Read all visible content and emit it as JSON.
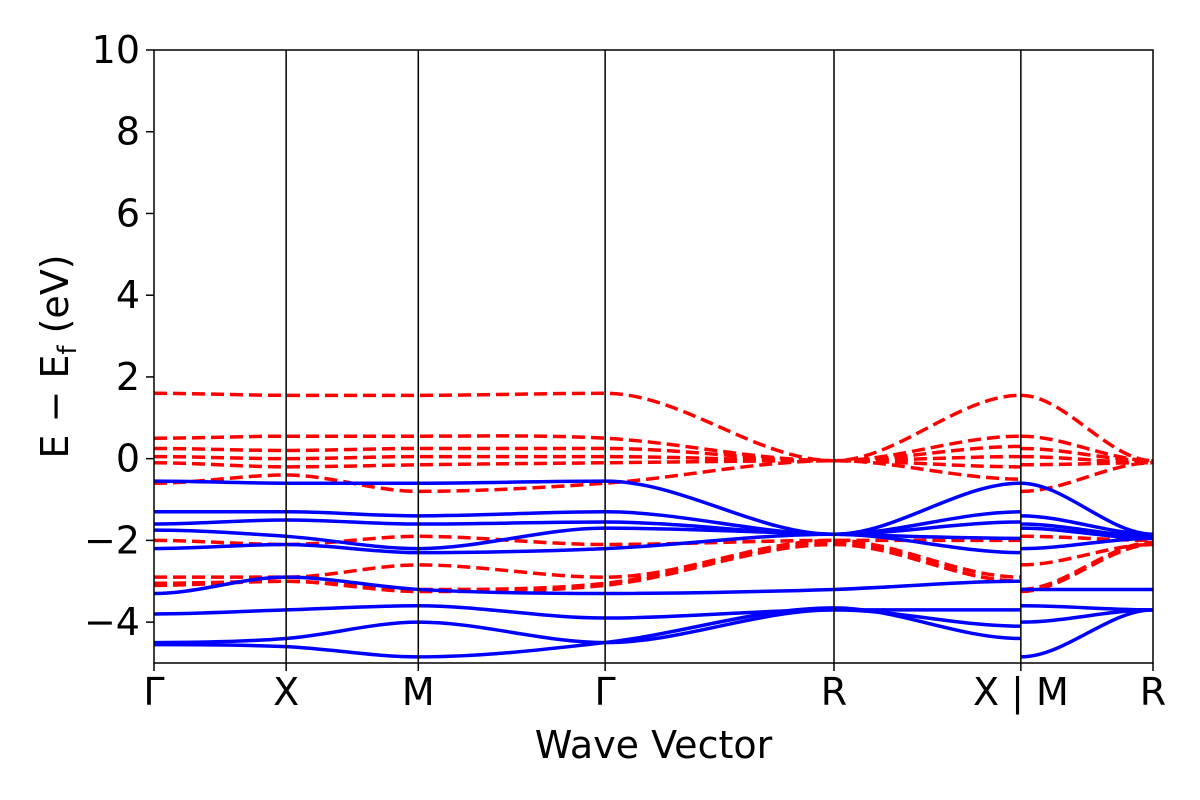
{
  "chart_data": {
    "type": "line",
    "title": "",
    "xlabel": "Wave Vector",
    "ylabel_main": "E − E",
    "ylabel_sub": "f",
    "ylabel_unit": " (eV)",
    "ylim": [
      -5,
      10
    ],
    "yticks": [
      -4,
      -2,
      0,
      2,
      4,
      6,
      8,
      10
    ],
    "ytick_labels": [
      "−4",
      "−2",
      "0",
      "2",
      "4",
      "6",
      "8",
      "10"
    ],
    "kpath": [
      {
        "label": "Γ",
        "k": 0.0
      },
      {
        "label": "X",
        "k": 0.5
      },
      {
        "label": "M",
        "k": 1.0
      },
      {
        "label": "Γ",
        "k": 1.707
      },
      {
        "label": "R",
        "k": 2.573
      },
      {
        "label": "X | M",
        "k": 3.28
      },
      {
        "label": "R",
        "k": 3.78
      }
    ],
    "grid": false,
    "colors": {
      "spin_up": "#0000ff",
      "spin_down": "#ff0000",
      "axis": "#000000"
    },
    "series": [
      {
        "name": "spin-up band 1",
        "style": "solid",
        "x": [
          0.0,
          0.5,
          1.0,
          1.707,
          2.573,
          3.28,
          3.28,
          3.78
        ],
        "y": [
          -0.55,
          -0.6,
          -0.6,
          -0.55,
          -1.85,
          -0.6,
          -0.6,
          -1.85
        ]
      },
      {
        "name": "spin-up band 2",
        "style": "solid",
        "x": [
          0.0,
          0.5,
          1.0,
          1.707,
          2.573,
          3.28,
          3.28,
          3.78
        ],
        "y": [
          -1.3,
          -1.3,
          -1.4,
          -1.3,
          -1.85,
          -1.3,
          -1.4,
          -1.85
        ]
      },
      {
        "name": "spin-up band 3",
        "style": "solid",
        "x": [
          0.0,
          0.5,
          1.0,
          1.707,
          2.573,
          3.28,
          3.28,
          3.78
        ],
        "y": [
          -1.6,
          -1.5,
          -1.6,
          -1.55,
          -1.85,
          -1.55,
          -1.6,
          -1.9
        ]
      },
      {
        "name": "spin-up band 4",
        "style": "solid",
        "x": [
          0.0,
          0.5,
          1.0,
          1.707,
          2.573,
          3.28,
          3.28,
          3.78
        ],
        "y": [
          -1.75,
          -1.9,
          -2.2,
          -1.7,
          -1.85,
          -1.95,
          -1.7,
          -1.95
        ]
      },
      {
        "name": "spin-up band 5",
        "style": "solid",
        "x": [
          0.0,
          0.5,
          1.0,
          1.707,
          2.573,
          3.28,
          3.28,
          3.78
        ],
        "y": [
          -2.2,
          -2.1,
          -2.3,
          -2.2,
          -1.85,
          -2.3,
          -2.2,
          -1.95
        ]
      },
      {
        "name": "spin-up band 6",
        "style": "solid",
        "x": [
          0.0,
          0.5,
          1.0,
          1.707,
          2.573,
          3.28,
          3.28,
          3.78
        ],
        "y": [
          -3.3,
          -2.9,
          -3.2,
          -3.3,
          -3.2,
          -3.0,
          -3.2,
          -3.2
        ]
      },
      {
        "name": "spin-up band 7",
        "style": "solid",
        "x": [
          0.0,
          0.5,
          1.0,
          1.707,
          2.573,
          3.28,
          3.28,
          3.78
        ],
        "y": [
          -3.8,
          -3.7,
          -3.6,
          -3.9,
          -3.7,
          -3.7,
          -3.6,
          -3.7
        ]
      },
      {
        "name": "spin-up band 8",
        "style": "solid",
        "x": [
          0.0,
          0.5,
          1.0,
          1.707,
          2.573,
          3.28,
          3.28,
          3.78
        ],
        "y": [
          -4.5,
          -4.4,
          -4.0,
          -4.5,
          -3.7,
          -4.1,
          -4.0,
          -3.7
        ]
      },
      {
        "name": "spin-up band 9",
        "style": "solid",
        "x": [
          0.0,
          0.5,
          1.0,
          1.707,
          2.573,
          3.28,
          3.28,
          3.78
        ],
        "y": [
          -4.55,
          -4.6,
          -4.85,
          -4.5,
          -3.65,
          -4.4,
          -4.85,
          -3.7
        ]
      },
      {
        "name": "spin-down band 1",
        "style": "dashed",
        "x": [
          0.0,
          0.5,
          1.0,
          1.707,
          2.573,
          3.28,
          3.28,
          3.78
        ],
        "y": [
          1.6,
          1.55,
          1.55,
          1.6,
          -0.05,
          1.55,
          1.55,
          -0.05
        ]
      },
      {
        "name": "spin-down band 2",
        "style": "dashed",
        "x": [
          0.0,
          0.5,
          1.0,
          1.707,
          2.573,
          3.28,
          3.28,
          3.78
        ],
        "y": [
          0.5,
          0.55,
          0.55,
          0.5,
          -0.05,
          0.55,
          0.55,
          -0.05
        ]
      },
      {
        "name": "spin-down band 3",
        "style": "dashed",
        "x": [
          0.0,
          0.5,
          1.0,
          1.707,
          2.573,
          3.28,
          3.28,
          3.78
        ],
        "y": [
          0.25,
          0.2,
          0.25,
          0.25,
          -0.05,
          0.3,
          0.25,
          -0.05
        ]
      },
      {
        "name": "spin-down band 4",
        "style": "dashed",
        "x": [
          0.0,
          0.5,
          1.0,
          1.707,
          2.573,
          3.28,
          3.28,
          3.78
        ],
        "y": [
          0.05,
          0.0,
          0.05,
          0.05,
          -0.05,
          0.05,
          0.05,
          -0.1
        ]
      },
      {
        "name": "spin-down band 5",
        "style": "dashed",
        "x": [
          0.0,
          0.5,
          1.0,
          1.707,
          2.573,
          3.28,
          3.28,
          3.78
        ],
        "y": [
          -0.1,
          -0.2,
          -0.15,
          -0.1,
          -0.05,
          -0.2,
          -0.15,
          -0.1
        ]
      },
      {
        "name": "spin-down band 6",
        "style": "dashed",
        "x": [
          0.0,
          0.5,
          1.0,
          1.707,
          2.573,
          3.28,
          3.28,
          3.78
        ],
        "y": [
          -0.6,
          -0.4,
          -0.8,
          -0.6,
          -0.05,
          -0.5,
          -0.8,
          -0.1
        ]
      },
      {
        "name": "spin-down band 7",
        "style": "dashed",
        "x": [
          0.0,
          0.5,
          1.0,
          1.707,
          2.573,
          3.28,
          3.28,
          3.78
        ],
        "y": [
          -2.0,
          -2.1,
          -1.9,
          -2.1,
          -2.0,
          -2.0,
          -1.9,
          -2.0
        ]
      },
      {
        "name": "spin-down band 8",
        "style": "dashed",
        "x": [
          0.0,
          0.5,
          1.0,
          1.707,
          2.573,
          3.28,
          3.28,
          3.78
        ],
        "y": [
          -2.9,
          -2.9,
          -2.6,
          -2.9,
          -2.0,
          -2.9,
          -2.6,
          -2.1
        ]
      },
      {
        "name": "spin-down band 9",
        "style": "dashed",
        "x": [
          0.0,
          0.5,
          1.0,
          1.707,
          2.573,
          3.28,
          3.28,
          3.78
        ],
        "y": [
          -3.05,
          -3.0,
          -3.2,
          -3.05,
          -2.05,
          -3.0,
          -3.2,
          -2.05
        ]
      },
      {
        "name": "spin-down band 10",
        "style": "dashed",
        "x": [
          0.0,
          0.5,
          1.0,
          1.707,
          2.573,
          3.28,
          3.28,
          3.78
        ],
        "y": [
          -3.1,
          -3.0,
          -3.25,
          -3.1,
          -2.1,
          -3.0,
          -3.25,
          -2.1
        ]
      }
    ]
  }
}
